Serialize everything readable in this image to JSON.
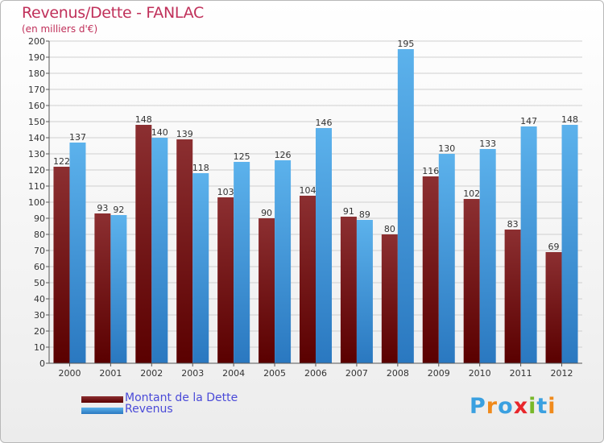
{
  "header": {
    "title": "Revenus/Dette - FANLAC",
    "subtitle": "(en milliers d'€)"
  },
  "legend": {
    "dette_label": "Montant de la Dette",
    "revenus_label": "Revenus"
  },
  "logo": {
    "text": "Proxiti",
    "letters": [
      "P",
      "r",
      "o",
      "x",
      "i",
      "t",
      "i"
    ],
    "colors": [
      "#3aa0e0",
      "#f08a1c",
      "#3aa0e0",
      "#e8262b",
      "#78b82a",
      "#3aa0e0",
      "#f08a1c"
    ]
  },
  "colors": {
    "dette_dark": "#5a0000",
    "dette_light": "#8c2f31",
    "revenus_dark": "#2a78c0",
    "revenus_light": "#5cb2ec",
    "grid": "#cfcfcf"
  },
  "chart_data": {
    "type": "bar",
    "title": "Revenus/Dette - FANLAC",
    "subtitle": "(en milliers d'€)",
    "xlabel": "",
    "ylabel": "",
    "ylim": [
      0,
      200
    ],
    "ytick_step": 10,
    "categories": [
      "2000",
      "2001",
      "2002",
      "2003",
      "2004",
      "2005",
      "2006",
      "2007",
      "2008",
      "2009",
      "2010",
      "2011",
      "2012"
    ],
    "series": [
      {
        "name": "Montant de la Dette",
        "values": [
          122,
          93,
          148,
          139,
          103,
          90,
          104,
          91,
          80,
          116,
          102,
          83,
          69
        ]
      },
      {
        "name": "Revenus",
        "values": [
          137,
          92,
          140,
          118,
          125,
          126,
          146,
          89,
          195,
          130,
          133,
          147,
          148
        ]
      }
    ],
    "legend": "bottom-left"
  }
}
